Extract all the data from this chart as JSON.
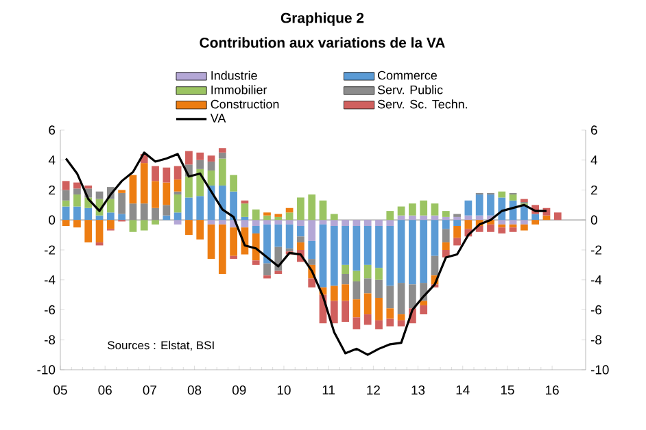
{
  "chart_data": {
    "type": "bar",
    "stacked": true,
    "title": "Graphique 2",
    "subtitle": "Contribution aux variations de la VA",
    "x": [
      2005.125,
      2005.375,
      2005.625,
      2005.875,
      2006.125,
      2006.375,
      2006.625,
      2006.875,
      2007.125,
      2007.375,
      2007.625,
      2007.875,
      2008.125,
      2008.375,
      2008.625,
      2008.875,
      2009.125,
      2009.375,
      2009.625,
      2009.875,
      2010.125,
      2010.375,
      2010.625,
      2010.875,
      2011.125,
      2011.375,
      2011.625,
      2011.875,
      2012.125,
      2012.375,
      2012.625,
      2012.875,
      2013.125,
      2013.375,
      2013.625,
      2013.875,
      2014.125,
      2014.375,
      2014.625,
      2014.875,
      2015.125,
      2015.375,
      2015.625,
      2015.875,
      2016.125
    ],
    "xlim": [
      2005,
      2016.75
    ],
    "xticks": [
      {
        "value": 2005,
        "label": "05"
      },
      {
        "value": 2006,
        "label": "06"
      },
      {
        "value": 2007,
        "label": "07"
      },
      {
        "value": 2008,
        "label": "08"
      },
      {
        "value": 2009,
        "label": "09"
      },
      {
        "value": 2010,
        "label": "10"
      },
      {
        "value": 2011,
        "label": "11"
      },
      {
        "value": 2012,
        "label": "12"
      },
      {
        "value": 2013,
        "label": "13"
      },
      {
        "value": 2014,
        "label": "14"
      },
      {
        "value": 2015,
        "label": "15"
      },
      {
        "value": 2016,
        "label": "16"
      }
    ],
    "ylim": [
      -10,
      6
    ],
    "yticks": [
      -10,
      -8,
      -6,
      -4,
      -2,
      0,
      2,
      4,
      6
    ],
    "y2lim": [
      -10,
      6
    ],
    "y2ticks": [
      -10,
      -8,
      -6,
      -4,
      -2,
      0,
      2,
      4,
      6
    ],
    "legend": "top",
    "ref_lines": [
      {
        "axis": "y",
        "value": 0,
        "color": "#a6a6a6"
      }
    ],
    "annotations": [
      "Sources :  Elstat, BSI"
    ],
    "series": [
      {
        "name": "Industrie",
        "color": "#b4a7d6",
        "values": [
          null,
          null,
          0,
          null,
          null,
          0,
          0,
          0,
          0,
          0,
          -0.3,
          0,
          0,
          -0.3,
          -0.3,
          -0.5,
          -0.5,
          -0.4,
          -0.3,
          -0.3,
          -0.3,
          -0.4,
          -1.4,
          -0.3,
          -0.4,
          -0.4,
          -0.4,
          -0.4,
          -0.4,
          -0.4,
          0.3,
          0.3,
          0.3,
          0.3,
          0.2,
          0.2,
          0.3,
          0.3,
          0.3,
          -0.3,
          -0.3,
          -0.3,
          0,
          0,
          0
        ]
      },
      {
        "name": "Commerce",
        "color": "#5b9bd5",
        "values": [
          0.9,
          0.9,
          0.8,
          0.3,
          0.5,
          0.4,
          0,
          0,
          0,
          0.3,
          0.5,
          1.5,
          1.6,
          2.3,
          2.3,
          1.9,
          0.2,
          -0.5,
          -2.6,
          -1.5,
          -1.6,
          -0.7,
          -1.2,
          -4.2,
          -4.0,
          -2.6,
          -3.0,
          -2.6,
          -2.8,
          -4.0,
          -4.2,
          -4.3,
          -4.2,
          -2.4,
          -0.6,
          -0.4,
          1.0,
          1.4,
          1.4,
          1.5,
          1.3,
          1.0,
          0.4,
          0,
          0
        ]
      },
      {
        "name": "Immobilier",
        "color": "#9bc462",
        "values": [
          0.4,
          0.8,
          0.7,
          1.1,
          0.9,
          0,
          -0.8,
          -0.7,
          -0.3,
          0,
          1.2,
          1.4,
          1.8,
          1.0,
          1.8,
          1.1,
          0.9,
          0.7,
          0.3,
          0.2,
          0.5,
          1.5,
          1.7,
          1.3,
          0.4,
          -0.6,
          -0.7,
          -0.9,
          -0.8,
          0.6,
          0.6,
          0.8,
          1.0,
          0.8,
          0.4,
          0,
          0,
          0,
          0,
          0.4,
          0.4,
          0.1,
          0,
          0,
          0
        ]
      },
      {
        "name": "Serv. Public",
        "color": "#8c8c8c",
        "values": [
          0.7,
          0.4,
          0.6,
          0.5,
          0.8,
          1.4,
          1.1,
          1.1,
          0.8,
          0.7,
          0.2,
          0.8,
          0.6,
          0.6,
          0.4,
          0,
          0,
          0,
          -0.8,
          -1.6,
          -0.2,
          -0.4,
          -0.4,
          0,
          0,
          -0.7,
          -1.2,
          -1.0,
          -1.2,
          -1.5,
          -2.1,
          -1.6,
          -1.2,
          -1.3,
          -0.9,
          0.2,
          0,
          0.1,
          0.1,
          0,
          0.1,
          0.1,
          0,
          0,
          0
        ]
      },
      {
        "name": "Construction",
        "color": "#ed7d12",
        "values": [
          -0.4,
          -0.5,
          -1.5,
          -1.5,
          -0.6,
          0.2,
          1.9,
          2.7,
          1.8,
          1.5,
          0.8,
          -1.0,
          -1.3,
          -2.3,
          -3.3,
          -1.9,
          -1.8,
          -1.8,
          0.2,
          0.2,
          0.3,
          -0.5,
          -0.9,
          -0.5,
          -1.0,
          -1.1,
          -1.2,
          -1.4,
          -1.5,
          -0.7,
          -0.4,
          0,
          -0.3,
          -0.6,
          -0.5,
          -0.8,
          -0.6,
          -0.4,
          -0.3,
          -0.2,
          -0.2,
          -0.4,
          -0.3,
          0.3,
          0
        ]
      },
      {
        "name": "Serv. Sc. Techn.",
        "color": "#d0605e",
        "values": [
          0.6,
          0.4,
          0.2,
          -0.2,
          -0.1,
          -0.1,
          0,
          0.6,
          1.0,
          1.0,
          0.9,
          0.9,
          0.5,
          0.4,
          0.3,
          -0.2,
          0.2,
          -0.3,
          -0.2,
          -0.2,
          -0.2,
          -0.8,
          -0.6,
          -1.9,
          -1.5,
          -1.4,
          -0.8,
          -0.7,
          -0.6,
          -0.5,
          -0.4,
          -1.0,
          -0.6,
          -0.2,
          -0.5,
          -0.5,
          -0.5,
          -0.4,
          -0.5,
          -0.4,
          -0.3,
          0.2,
          0.6,
          0.5,
          0.5
        ]
      },
      {
        "name": "VA",
        "type": "line",
        "color": "#000000",
        "values": [
          4.1,
          3.1,
          1.4,
          0.6,
          1.7,
          2.6,
          3.2,
          4.5,
          3.9,
          4.1,
          4.4,
          2.9,
          3.1,
          1.9,
          0.7,
          0.2,
          -1.7,
          -1.9,
          -2.5,
          -3.1,
          -2.2,
          -2.3,
          -3.4,
          -5.1,
          -7.5,
          -8.9,
          -8.6,
          -9.0,
          -8.6,
          -8.3,
          -8.2,
          -6.0,
          -5.1,
          -4.3,
          -2.5,
          -2.3,
          -1.0,
          -0.3,
          0.0,
          0.6,
          0.8,
          1.0,
          0.6,
          0.6,
          null
        ]
      }
    ]
  }
}
